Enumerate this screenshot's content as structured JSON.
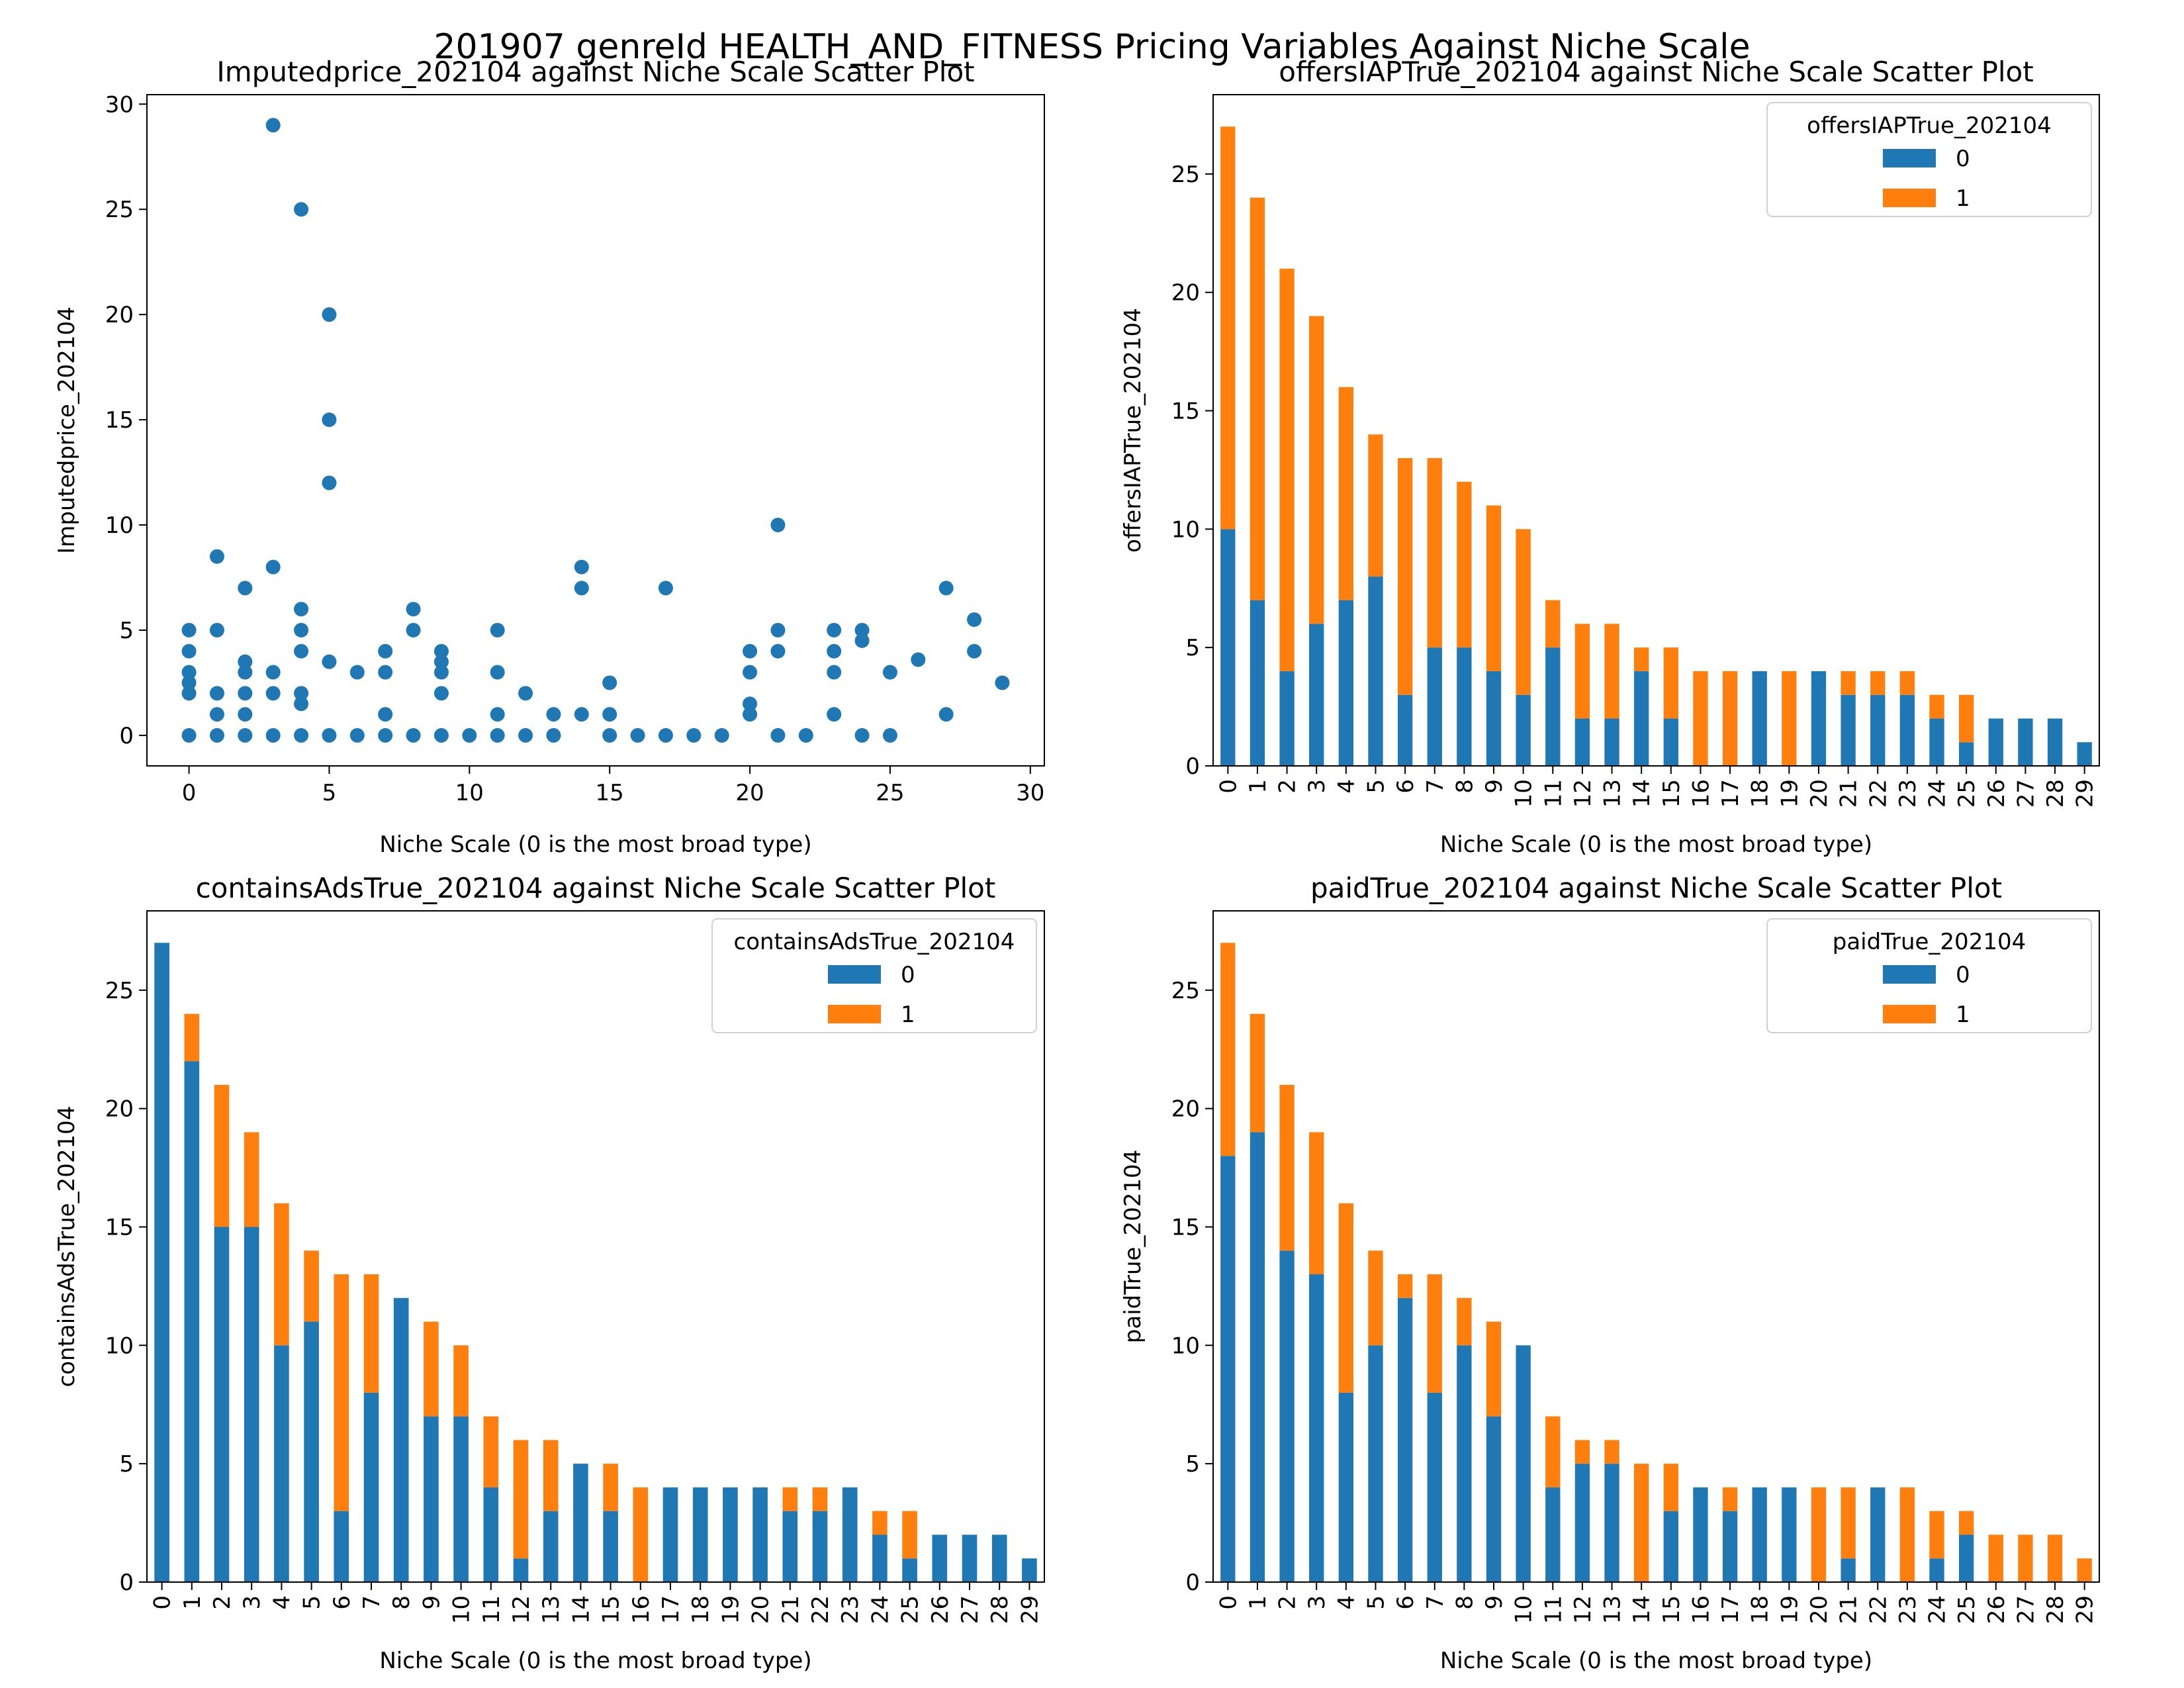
{
  "suptitle": "201907 genreId HEALTH_AND_FITNESS Pricing Variables Against Niche Scale",
  "colors": {
    "series0": "#1f77b4",
    "series1": "#ff7f0e",
    "scatter": "#1f77b4",
    "axis": "#000000"
  },
  "chart_data": [
    {
      "type": "scatter",
      "title": "Imputedprice_202104 against Niche Scale Scatter Plot",
      "xlabel": "Niche Scale (0 is the most broad type)",
      "ylabel": "Imputedprice_202104",
      "xlim": [
        -1.5,
        30.5
      ],
      "ylim": [
        -1.45,
        30.45
      ],
      "xticks": [
        0,
        5,
        10,
        15,
        20,
        25,
        30
      ],
      "yticks": [
        0,
        5,
        10,
        15,
        20,
        25,
        30
      ],
      "points": [
        [
          0,
          0
        ],
        [
          0,
          2
        ],
        [
          0,
          2.5
        ],
        [
          0,
          3
        ],
        [
          0,
          4
        ],
        [
          0,
          5
        ],
        [
          1,
          0
        ],
        [
          1,
          1
        ],
        [
          1,
          2
        ],
        [
          1,
          5
        ],
        [
          1,
          8.5
        ],
        [
          2,
          0
        ],
        [
          2,
          1
        ],
        [
          2,
          2
        ],
        [
          2,
          3
        ],
        [
          2,
          3.5
        ],
        [
          2,
          7
        ],
        [
          3,
          0
        ],
        [
          3,
          2
        ],
        [
          3,
          3
        ],
        [
          3,
          8
        ],
        [
          3,
          29
        ],
        [
          4,
          0
        ],
        [
          4,
          1.5
        ],
        [
          4,
          2
        ],
        [
          4,
          4
        ],
        [
          4,
          5
        ],
        [
          4,
          6
        ],
        [
          4,
          25
        ],
        [
          5,
          0
        ],
        [
          5,
          3.5
        ],
        [
          5,
          12
        ],
        [
          5,
          15
        ],
        [
          5,
          20
        ],
        [
          6,
          0
        ],
        [
          6,
          3
        ],
        [
          7,
          0
        ],
        [
          7,
          1
        ],
        [
          7,
          3
        ],
        [
          7,
          4
        ],
        [
          8,
          0
        ],
        [
          8,
          5
        ],
        [
          8,
          6
        ],
        [
          9,
          0
        ],
        [
          9,
          2
        ],
        [
          9,
          3
        ],
        [
          9,
          3.5
        ],
        [
          9,
          4
        ],
        [
          10,
          0
        ],
        [
          11,
          0
        ],
        [
          11,
          1
        ],
        [
          11,
          3
        ],
        [
          11,
          5
        ],
        [
          12,
          0
        ],
        [
          12,
          2
        ],
        [
          13,
          0
        ],
        [
          13,
          1
        ],
        [
          14,
          1
        ],
        [
          14,
          7
        ],
        [
          14,
          8
        ],
        [
          15,
          0
        ],
        [
          15,
          1
        ],
        [
          15,
          2.5
        ],
        [
          16,
          0
        ],
        [
          17,
          0
        ],
        [
          17,
          7
        ],
        [
          18,
          0
        ],
        [
          19,
          0
        ],
        [
          20,
          1
        ],
        [
          20,
          1.5
        ],
        [
          20,
          3
        ],
        [
          20,
          4
        ],
        [
          21,
          0
        ],
        [
          21,
          4
        ],
        [
          21,
          5
        ],
        [
          21,
          10
        ],
        [
          22,
          0
        ],
        [
          23,
          1
        ],
        [
          23,
          3
        ],
        [
          23,
          4
        ],
        [
          23,
          5
        ],
        [
          24,
          0
        ],
        [
          24,
          4.5
        ],
        [
          24,
          5
        ],
        [
          25,
          0
        ],
        [
          25,
          3
        ],
        [
          26,
          3.6
        ],
        [
          27,
          1
        ],
        [
          27,
          7
        ],
        [
          28,
          4
        ],
        [
          28,
          5.5
        ],
        [
          29,
          2.5
        ]
      ]
    },
    {
      "type": "bar",
      "stacked": true,
      "title": "offersIAPTrue_202104 against Niche Scale Scatter Plot",
      "xlabel": "Niche Scale (0 is the most broad type)",
      "ylabel": "offersIAPTrue_202104",
      "ylim": [
        0,
        28.35
      ],
      "yticks": [
        0,
        5,
        10,
        15,
        20,
        25
      ],
      "legend_title": "offersIAPTrue_202104",
      "legend_position": "top-right",
      "categories": [
        "0",
        "1",
        "2",
        "3",
        "4",
        "5",
        "6",
        "7",
        "8",
        "9",
        "10",
        "11",
        "12",
        "13",
        "14",
        "15",
        "16",
        "17",
        "18",
        "19",
        "20",
        "21",
        "22",
        "23",
        "24",
        "25",
        "26",
        "27",
        "28",
        "29"
      ],
      "series": [
        {
          "name": "0",
          "values": [
            10,
            7,
            4,
            6,
            7,
            8,
            3,
            5,
            5,
            4,
            3,
            5,
            2,
            2,
            4,
            2,
            0,
            0,
            4,
            0,
            4,
            3,
            3,
            3,
            2,
            1,
            2,
            2,
            2,
            1
          ]
        },
        {
          "name": "1",
          "values": [
            17,
            17,
            17,
            13,
            9,
            6,
            10,
            8,
            7,
            7,
            7,
            2,
            4,
            4,
            1,
            3,
            4,
            4,
            0,
            4,
            0,
            1,
            1,
            1,
            1,
            2,
            0,
            0,
            0,
            0
          ]
        }
      ]
    },
    {
      "type": "bar",
      "stacked": true,
      "title": "containsAdsTrue_202104 against Niche Scale Scatter Plot",
      "xlabel": "Niche Scale (0 is the most broad type)",
      "ylabel": "containsAdsTrue_202104",
      "ylim": [
        0,
        28.35
      ],
      "yticks": [
        0,
        5,
        10,
        15,
        20,
        25
      ],
      "legend_title": "containsAdsTrue_202104",
      "legend_position": "top-right",
      "categories": [
        "0",
        "1",
        "2",
        "3",
        "4",
        "5",
        "6",
        "7",
        "8",
        "9",
        "10",
        "11",
        "12",
        "13",
        "14",
        "15",
        "16",
        "17",
        "18",
        "19",
        "20",
        "21",
        "22",
        "23",
        "24",
        "25",
        "26",
        "27",
        "28",
        "29"
      ],
      "series": [
        {
          "name": "0",
          "values": [
            27,
            22,
            15,
            15,
            10,
            11,
            3,
            8,
            12,
            7,
            7,
            4,
            1,
            3,
            5,
            3,
            0,
            4,
            4,
            4,
            4,
            3,
            3,
            4,
            2,
            1,
            2,
            2,
            2,
            1
          ]
        },
        {
          "name": "1",
          "values": [
            0,
            2,
            6,
            4,
            6,
            3,
            10,
            5,
            0,
            4,
            3,
            3,
            5,
            3,
            0,
            2,
            4,
            0,
            0,
            0,
            0,
            1,
            1,
            0,
            1,
            2,
            0,
            0,
            0,
            0
          ]
        }
      ]
    },
    {
      "type": "bar",
      "stacked": true,
      "title": "paidTrue_202104 against Niche Scale Scatter Plot",
      "xlabel": "Niche Scale (0 is the most broad type)",
      "ylabel": "paidTrue_202104",
      "ylim": [
        0,
        28.35
      ],
      "yticks": [
        0,
        5,
        10,
        15,
        20,
        25
      ],
      "legend_title": "paidTrue_202104",
      "legend_position": "top-right",
      "categories": [
        "0",
        "1",
        "2",
        "3",
        "4",
        "5",
        "6",
        "7",
        "8",
        "9",
        "10",
        "11",
        "12",
        "13",
        "14",
        "15",
        "16",
        "17",
        "18",
        "19",
        "20",
        "21",
        "22",
        "23",
        "24",
        "25",
        "26",
        "27",
        "28",
        "29"
      ],
      "series": [
        {
          "name": "0",
          "values": [
            18,
            19,
            14,
            13,
            8,
            10,
            12,
            8,
            10,
            7,
            10,
            4,
            5,
            5,
            0,
            3,
            4,
            3,
            4,
            4,
            0,
            1,
            4,
            0,
            1,
            2,
            0,
            0,
            0,
            0
          ]
        },
        {
          "name": "1",
          "values": [
            9,
            5,
            7,
            6,
            8,
            4,
            1,
            5,
            2,
            4,
            0,
            3,
            1,
            1,
            5,
            2,
            0,
            1,
            0,
            0,
            4,
            3,
            0,
            4,
            2,
            1,
            2,
            2,
            2,
            1
          ]
        }
      ]
    }
  ]
}
